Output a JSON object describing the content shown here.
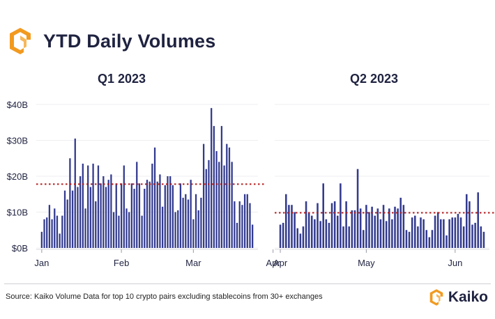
{
  "header": {
    "title": "YTD Daily Volumes"
  },
  "footer": {
    "source": "Source: Kaiko Volume Data for top 10 crypto pairs excluding stablecoins from 30+ exchanges",
    "brand": "Kaiko"
  },
  "colors": {
    "bar": "#333b8f",
    "avg_line": "#b51a1a",
    "accent": "#f29a1f",
    "title": "#1f2340"
  },
  "chart_data": [
    {
      "type": "bar",
      "title": "Q1 2023",
      "ylim": [
        0,
        40
      ],
      "yticks": [
        0,
        10,
        20,
        30,
        40
      ],
      "ytick_labels": [
        "$0B",
        "$10B",
        "$20B",
        "$30B",
        "$40B"
      ],
      "xtick_labels": [
        "Jan",
        "Feb",
        "Mar",
        "Apr"
      ],
      "xtick_index": [
        0,
        31,
        59,
        90
      ],
      "average": 17.8,
      "values": [
        4.5,
        8,
        8.5,
        12,
        8,
        11,
        9,
        4,
        9,
        16,
        13.5,
        25,
        16,
        30.5,
        17,
        20,
        23.5,
        11,
        23,
        17,
        23.5,
        13,
        23,
        18,
        20,
        17,
        19,
        20.5,
        10,
        18,
        9,
        18,
        23,
        11,
        10,
        18,
        16.5,
        24,
        18,
        9,
        16.5,
        19,
        18.5,
        23.5,
        28,
        18.5,
        20.5,
        11.5,
        17.5,
        20,
        20,
        17.5,
        10,
        10.5,
        18,
        14,
        15,
        13.5,
        19,
        8,
        15,
        10.5,
        14,
        29,
        22,
        24.5,
        39,
        34,
        27,
        24,
        34,
        23,
        29,
        28,
        24,
        13,
        7,
        13,
        12,
        15,
        15,
        12.5,
        6.5
      ],
      "series": [
        {
          "values": []
        }
      ]
    },
    {
      "type": "bar",
      "title": "Q2 2023",
      "ylim": [
        0,
        40
      ],
      "yticks": [
        0,
        10,
        20,
        30,
        40
      ],
      "xtick_labels": [
        "Apr",
        "May",
        "Jun"
      ],
      "xtick_index": [
        0,
        30,
        61
      ],
      "average": 9.8,
      "values": [
        6.5,
        7,
        15,
        12,
        12,
        10,
        5.5,
        4,
        6,
        13,
        10,
        9,
        8,
        12.5,
        7.5,
        18,
        8,
        7,
        12.5,
        13,
        9,
        18,
        6,
        13,
        6,
        10.5,
        10.5,
        22,
        11,
        5,
        12,
        10,
        11.5,
        9,
        11,
        8,
        12,
        7.5,
        11,
        8,
        11.5,
        11,
        14,
        12,
        5,
        4.5,
        8.5,
        9,
        6,
        8.5,
        8,
        5,
        3,
        5,
        9,
        10,
        8,
        8,
        3.5,
        8,
        8.5,
        8.5,
        9.5,
        8.5,
        6,
        15,
        13,
        6.5,
        7,
        15.5,
        6,
        4.5
      ]
    }
  ]
}
